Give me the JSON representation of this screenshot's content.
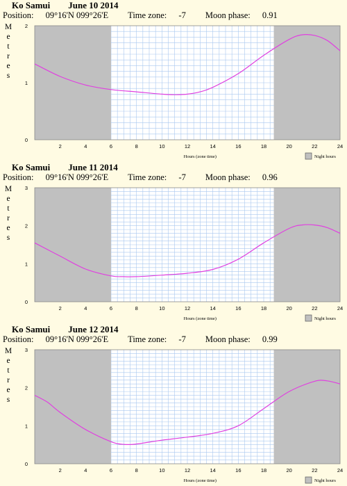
{
  "chart_data": [
    {
      "type": "line",
      "location": "Ko Samui",
      "date": "June 10 2014",
      "position_label": "Position:",
      "position": "09°16'N 099°26'E",
      "timezone_label": "Time zone:",
      "timezone": "-7",
      "moon_label": "Moon phase:",
      "moon_phase": "0.91",
      "ylabel": "Metres",
      "xlabel": "Hours (zone time)",
      "legend": "Night hours",
      "ylim": [
        0,
        2
      ],
      "yticks": [
        "0",
        "1",
        "2"
      ],
      "xlim": [
        0,
        24
      ],
      "xticks": [
        "2",
        "4",
        "6",
        "8",
        "10",
        "12",
        "14",
        "16",
        "18",
        "20",
        "22",
        "24"
      ],
      "night_ranges": [
        [
          0,
          6
        ],
        [
          18.8,
          24
        ]
      ],
      "grid": true,
      "line_color": "#e040e0",
      "night_color": "#c0c0c0",
      "x": [
        0,
        2,
        4,
        6,
        8,
        10,
        11,
        12,
        13,
        14,
        16,
        18,
        20,
        21,
        22,
        23,
        24
      ],
      "y": [
        1.33,
        1.11,
        0.96,
        0.88,
        0.84,
        0.8,
        0.79,
        0.8,
        0.84,
        0.92,
        1.16,
        1.48,
        1.76,
        1.84,
        1.83,
        1.74,
        1.56
      ]
    },
    {
      "type": "line",
      "location": "Ko Samui",
      "date": "June 11 2014",
      "position_label": "Position:",
      "position": "09°16'N 099°26'E",
      "timezone_label": "Time zone:",
      "timezone": "-7",
      "moon_label": "Moon phase:",
      "moon_phase": "0.96",
      "ylabel": "Metres",
      "xlabel": "Hours (zone time)",
      "legend": "Night hours",
      "ylim": [
        0,
        3
      ],
      "yticks": [
        "0",
        "1",
        "2",
        "3"
      ],
      "xlim": [
        0,
        24
      ],
      "xticks": [
        "2",
        "4",
        "6",
        "8",
        "10",
        "12",
        "14",
        "16",
        "18",
        "20",
        "22",
        "24"
      ],
      "night_ranges": [
        [
          0,
          6
        ],
        [
          18.8,
          24
        ]
      ],
      "grid": true,
      "line_color": "#e040e0",
      "night_color": "#c0c0c0",
      "x": [
        0,
        2,
        4,
        6,
        7,
        8,
        10,
        12,
        14,
        16,
        18,
        20,
        21,
        22,
        23,
        24
      ],
      "y": [
        1.55,
        1.2,
        0.86,
        0.68,
        0.66,
        0.66,
        0.7,
        0.75,
        0.85,
        1.12,
        1.55,
        1.93,
        2.02,
        2.02,
        1.95,
        1.8
      ]
    },
    {
      "type": "line",
      "location": "Ko Samui",
      "date": "June 12 2014",
      "position_label": "Position:",
      "position": "09°16'N 099°26'E",
      "timezone_label": "Time zone:",
      "timezone": "-7",
      "moon_label": "Moon phase:",
      "moon_phase": "0.99",
      "ylabel": "Metres",
      "xlabel": "Hours (zone time)",
      "legend": "Night hours",
      "ylim": [
        0,
        3
      ],
      "yticks": [
        "0",
        "1",
        "2",
        "3"
      ],
      "xlim": [
        0,
        24
      ],
      "xticks": [
        "2",
        "4",
        "6",
        "8",
        "10",
        "12",
        "14",
        "16",
        "18",
        "20",
        "22",
        "24"
      ],
      "night_ranges": [
        [
          0,
          6
        ],
        [
          18.8,
          24
        ]
      ],
      "grid": true,
      "line_color": "#e040e0",
      "night_color": "#c0c0c0",
      "x": [
        0,
        1,
        2,
        4,
        6,
        7,
        8,
        10,
        12,
        14,
        16,
        18,
        20,
        22,
        23,
        24
      ],
      "y": [
        1.8,
        1.62,
        1.35,
        0.9,
        0.58,
        0.51,
        0.52,
        0.62,
        0.7,
        0.8,
        1.0,
        1.45,
        1.9,
        2.17,
        2.18,
        2.1
      ]
    }
  ]
}
